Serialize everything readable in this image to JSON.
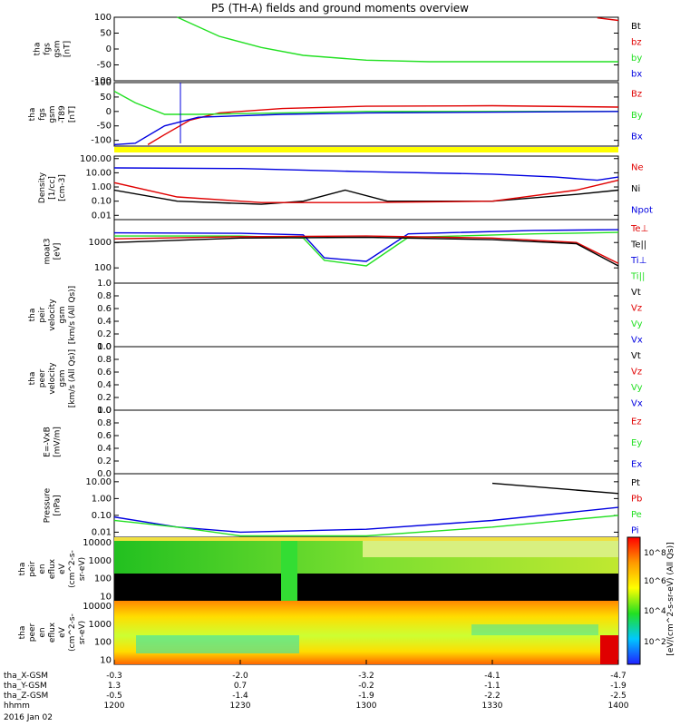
{
  "title": "P5 (TH-A) fields and ground moments overview",
  "colors": {
    "black": "#000000",
    "red": "#e00000",
    "green": "#22e022",
    "blue": "#0000e0",
    "yellow": "#ffff00"
  },
  "panels": [
    {
      "id": "fgs",
      "ylabel": [
        "tha",
        "fgs",
        "gsm",
        "[nT]"
      ],
      "yticks": [
        "100",
        "50",
        "0",
        "-50",
        "-100"
      ],
      "legend": [
        {
          "text": "Bt",
          "color": "black"
        },
        {
          "text": "bz",
          "color": "red"
        },
        {
          "text": "by",
          "color": "green"
        },
        {
          "text": "bx",
          "color": "blue"
        }
      ]
    },
    {
      "id": "fgs_dip",
      "ylabel": [
        "tha",
        "fgs",
        "gsm",
        "-T89",
        "[nT]"
      ],
      "yticks": [
        "100",
        "50",
        "0",
        "-50",
        "-100"
      ],
      "legend": [
        {
          "text": "Bz",
          "color": "red"
        },
        {
          "text": "By",
          "color": "green"
        },
        {
          "text": "Bx",
          "color": "blue"
        }
      ]
    },
    {
      "id": "density",
      "ylabel": [
        "Density",
        "[1/cc]",
        "[cm-3]"
      ],
      "yticks": [
        "100.00",
        "10.00",
        "1.00",
        "0.10",
        "0.01"
      ],
      "legend": [
        {
          "text": "Ne",
          "color": "red"
        },
        {
          "text": "Ni",
          "color": "black"
        },
        {
          "text": "Npot",
          "color": "blue"
        }
      ]
    },
    {
      "id": "temp",
      "ylabel": [
        "moat3",
        "[eV]"
      ],
      "yticks": [
        "1000",
        "100"
      ],
      "legend": [
        {
          "text": "Te⊥",
          "color": "red"
        },
        {
          "text": "Te||",
          "color": "black"
        },
        {
          "text": "Ti⊥",
          "color": "blue"
        },
        {
          "text": "Ti||",
          "color": "green"
        }
      ]
    },
    {
      "id": "peir_vel",
      "ylabel": [
        "tha",
        "peir",
        "velocity",
        "gsm",
        "[km/s (All Qs)]"
      ],
      "yticks": [
        "1.0",
        "0.8",
        "0.6",
        "0.4",
        "0.2",
        "0.0"
      ],
      "legend": [
        {
          "text": "Vt",
          "color": "black"
        },
        {
          "text": "Vz",
          "color": "red"
        },
        {
          "text": "Vy",
          "color": "green"
        },
        {
          "text": "Vx",
          "color": "blue"
        }
      ]
    },
    {
      "id": "peer_vel",
      "ylabel": [
        "tha",
        "peer",
        "velocity",
        "gsm",
        "[km/s (All Qs)]"
      ],
      "yticks": [
        "1.0",
        "0.8",
        "0.6",
        "0.4",
        "0.2",
        "0.0"
      ],
      "legend": [
        {
          "text": "Vt",
          "color": "black"
        },
        {
          "text": "Vz",
          "color": "red"
        },
        {
          "text": "Vy",
          "color": "green"
        },
        {
          "text": "Vx",
          "color": "blue"
        }
      ]
    },
    {
      "id": "efield",
      "ylabel": [
        "E=-VxB",
        "[mV/m]"
      ],
      "yticks": [
        "1.0",
        "0.8",
        "0.6",
        "0.4",
        "0.2",
        "0.0"
      ],
      "legend": [
        {
          "text": "Ez",
          "color": "red"
        },
        {
          "text": "Ey",
          "color": "green"
        },
        {
          "text": "Ex",
          "color": "blue"
        }
      ]
    },
    {
      "id": "pressure",
      "ylabel": [
        "Pressure",
        "[nPa]"
      ],
      "yticks": [
        "10.00",
        "1.00",
        "0.10",
        "0.01"
      ],
      "legend": [
        {
          "text": "Pt",
          "color": "black"
        },
        {
          "text": "Pb",
          "color": "red"
        },
        {
          "text": "Pe",
          "color": "green"
        },
        {
          "text": "Pi",
          "color": "blue"
        }
      ]
    },
    {
      "id": "peir_spec",
      "ylabel": [
        "tha",
        "peir",
        "en",
        "eflux",
        "eV",
        "(cm^2-s-",
        "sr-eV)"
      ],
      "yticks": [
        "10000",
        "1000",
        "100",
        "10"
      ]
    },
    {
      "id": "peer_spec",
      "ylabel": [
        "tha",
        "peer",
        "en",
        "eflux",
        "eV",
        "(cm^2-s-",
        "sr-eV)"
      ],
      "yticks": [
        "10000",
        "1000",
        "100",
        "10"
      ]
    }
  ],
  "colorbar": {
    "ticks": [
      "10^8",
      "10^6",
      "10^4",
      "10^2"
    ],
    "label": "[eV/(cm^2-s-sr-eV) (All Qs)]"
  },
  "xaxis": {
    "rows": [
      {
        "label": "tha_X-GSM",
        "values": [
          "-0.3",
          "-2.0",
          "-3.2",
          "-4.1",
          "-4.7"
        ]
      },
      {
        "label": "tha_Y-GSM",
        "values": [
          "1.3",
          "0.7",
          "-0.2",
          "-1.1",
          "-1.9"
        ]
      },
      {
        "label": "tha_Z-GSM",
        "values": [
          "-0.5",
          "-1.4",
          "-1.9",
          "-2.2",
          "-2.5"
        ]
      },
      {
        "label": "hhmm",
        "values": [
          "1200",
          "1230",
          "1300",
          "1330",
          "1400"
        ]
      }
    ],
    "date": "2016 Jan 02"
  },
  "chart_data": {
    "type": "line",
    "title": "P5 (TH-A) fields and ground moments overview",
    "xlabel": "hhmm",
    "x_range": [
      "1200",
      "1400"
    ],
    "series": [
      {
        "panel": "fgs",
        "name": "by",
        "points": [
          [
            1215,
            100
          ],
          [
            1225,
            40
          ],
          [
            1235,
            5
          ],
          [
            1245,
            -20
          ],
          [
            1300,
            -35
          ],
          [
            1315,
            -40
          ],
          [
            1400,
            -40
          ]
        ]
      },
      {
        "panel": "fgs",
        "name": "bz",
        "points": [
          [
            1355,
            98
          ],
          [
            1400,
            90
          ]
        ]
      },
      {
        "panel": "fgs_dip",
        "name": "Bz",
        "points": [
          [
            1208,
            -115
          ],
          [
            1212,
            -80
          ],
          [
            1218,
            -30
          ],
          [
            1225,
            -5
          ],
          [
            1240,
            10
          ],
          [
            1300,
            18
          ],
          [
            1330,
            20
          ],
          [
            1400,
            15
          ]
        ]
      },
      {
        "panel": "fgs_dip",
        "name": "By",
        "points": [
          [
            1200,
            70
          ],
          [
            1205,
            30
          ],
          [
            1212,
            -10
          ],
          [
            1220,
            -10
          ],
          [
            1240,
            -5
          ],
          [
            1300,
            0
          ],
          [
            1400,
            0
          ]
        ]
      },
      {
        "panel": "fgs_dip",
        "name": "Bx",
        "points": [
          [
            1200,
            -115
          ],
          [
            1205,
            -110
          ],
          [
            1212,
            -50
          ],
          [
            1220,
            -20
          ],
          [
            1240,
            -10
          ],
          [
            1300,
            -5
          ],
          [
            1400,
            0
          ]
        ]
      },
      {
        "panel": "density",
        "name": "Npot",
        "points": [
          [
            1200,
            22
          ],
          [
            1230,
            20
          ],
          [
            1300,
            12
          ],
          [
            1330,
            8
          ],
          [
            1345,
            5
          ],
          [
            1355,
            3
          ],
          [
            1400,
            5
          ]
        ]
      },
      {
        "panel": "density",
        "name": "Ni",
        "points": [
          [
            1200,
            0.6
          ],
          [
            1215,
            0.1
          ],
          [
            1235,
            0.06
          ],
          [
            1245,
            0.1
          ],
          [
            1255,
            0.6
          ],
          [
            1305,
            0.1
          ],
          [
            1330,
            0.1
          ],
          [
            1350,
            0.3
          ],
          [
            1400,
            0.6
          ]
        ]
      },
      {
        "panel": "density",
        "name": "Ne",
        "points": [
          [
            1200,
            2
          ],
          [
            1215,
            0.2
          ],
          [
            1235,
            0.08
          ],
          [
            1300,
            0.08
          ],
          [
            1330,
            0.1
          ],
          [
            1350,
            0.6
          ],
          [
            1400,
            3
          ]
        ]
      },
      {
        "panel": "temp",
        "name": "Ti⊥",
        "points": [
          [
            1200,
            2400
          ],
          [
            1230,
            2300
          ],
          [
            1245,
            2000
          ],
          [
            1250,
            250
          ],
          [
            1300,
            180
          ],
          [
            1310,
            2200
          ],
          [
            1340,
            3000
          ],
          [
            1400,
            3200
          ]
        ]
      },
      {
        "panel": "temp",
        "name": "Ti||",
        "points": [
          [
            1200,
            1800
          ],
          [
            1230,
            1800
          ],
          [
            1245,
            1500
          ],
          [
            1250,
            200
          ],
          [
            1300,
            120
          ],
          [
            1310,
            1600
          ],
          [
            1340,
            2200
          ],
          [
            1400,
            2500
          ]
        ]
      },
      {
        "panel": "temp",
        "name": "Te⊥",
        "points": [
          [
            1200,
            1400
          ],
          [
            1230,
            1700
          ],
          [
            1300,
            1800
          ],
          [
            1330,
            1500
          ],
          [
            1350,
            1000
          ],
          [
            1400,
            150
          ]
        ]
      },
      {
        "panel": "temp",
        "name": "Te||",
        "points": [
          [
            1200,
            1000
          ],
          [
            1230,
            1500
          ],
          [
            1300,
            1600
          ],
          [
            1330,
            1300
          ],
          [
            1350,
            900
          ],
          [
            1400,
            120
          ]
        ]
      },
      {
        "panel": "pressure",
        "name": "Pt",
        "points": [
          [
            1330,
            8
          ],
          [
            1400,
            2
          ]
        ]
      },
      {
        "panel": "pressure",
        "name": "Pi",
        "points": [
          [
            1200,
            0.08
          ],
          [
            1215,
            0.02
          ],
          [
            1230,
            0.01
          ],
          [
            1300,
            0.015
          ],
          [
            1330,
            0.05
          ],
          [
            1400,
            0.3
          ]
        ]
      },
      {
        "panel": "pressure",
        "name": "Pe",
        "points": [
          [
            1200,
            0.05
          ],
          [
            1215,
            0.02
          ],
          [
            1230,
            0.006
          ],
          [
            1300,
            0.006
          ],
          [
            1330,
            0.02
          ],
          [
            1400,
            0.1
          ]
        ]
      }
    ]
  }
}
